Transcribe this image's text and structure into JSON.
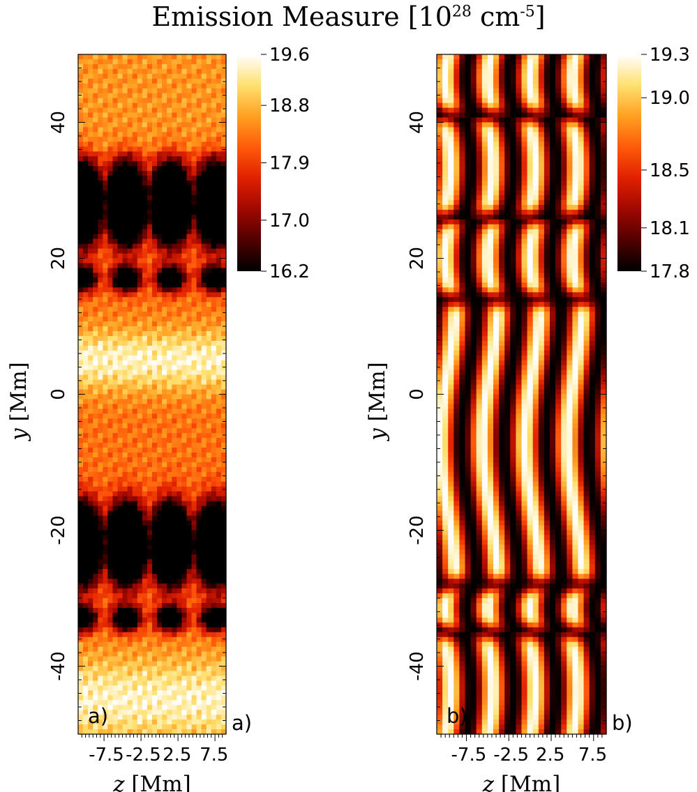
{
  "title": {
    "prefix": "Emission Measure [10",
    "exponent": "28",
    "unit": " cm",
    "unit_exponent": "-5",
    "suffix": "]"
  },
  "chart_data": [
    {
      "type": "heatmap",
      "panel": "a",
      "panel_label": "a)",
      "outer_label": "a)",
      "xlabel_var": "z",
      "xlabel_unit": " [Mm]",
      "ylabel_var": "y",
      "ylabel_unit": " [Mm]",
      "xlim": [
        -11,
        9
      ],
      "ylim": [
        -50,
        50
      ],
      "xtick_labels": [
        "-7.5",
        "-2.5",
        "2.5",
        "7.5"
      ],
      "xtick_values": [
        -7.5,
        -2.5,
        2.5,
        7.5
      ],
      "ytick_labels": [
        "40",
        "20",
        "0",
        "-20",
        "-40"
      ],
      "ytick_values": [
        40,
        20,
        0,
        -20,
        -40
      ],
      "colorbar": {
        "ticks": [
          "19.6",
          "18.8",
          "17.9",
          "17.0",
          "16.2"
        ],
        "tick_values": [
          19.6,
          18.8,
          17.9,
          17.0,
          16.2
        ],
        "min": 16.2,
        "max": 19.6
      },
      "pattern": {
        "background_level": 18.3,
        "bright_bands_y_centers": [
          5,
          -45
        ],
        "bright_band_level": 19.5,
        "dark_blobs_y_centers": [
          28,
          -22
        ],
        "dark_blob_level": 16.3,
        "dark_blob_z_centers": [
          -10.5,
          -4.5,
          1.5,
          7.5
        ],
        "weak_dark_y_centers": [
          17,
          -33
        ]
      }
    },
    {
      "type": "heatmap",
      "panel": "b",
      "panel_label": "b)",
      "outer_label": "b)",
      "xlabel_var": "z",
      "xlabel_unit": " [Mm]",
      "ylabel_var": "y",
      "ylabel_unit": " [Mm]",
      "xlim": [
        -11,
        9
      ],
      "ylim": [
        -50,
        50
      ],
      "xtick_labels": [
        "-7.5",
        "-2.5",
        "2.5",
        "7.5"
      ],
      "xtick_values": [
        -7.5,
        -2.5,
        2.5,
        7.5
      ],
      "ytick_labels": [
        "40",
        "20",
        "0",
        "-20",
        "-40"
      ],
      "ytick_values": [
        40,
        20,
        0,
        -20,
        -40
      ],
      "colorbar": {
        "ticks": [
          "19.3",
          "19.0",
          "18.5",
          "18.1",
          "17.8"
        ],
        "tick_values": [
          19.3,
          19.0,
          18.5,
          18.1,
          17.8
        ],
        "min": 17.8,
        "max": 19.3
      },
      "pattern": {
        "stripe_count": 4,
        "stripe_period_z": 5,
        "stripe_min_level": 17.8,
        "stripe_max_level": 19.3,
        "horizontal_breaks_y": [
          41,
          26,
          14,
          -28,
          -35
        ]
      }
    }
  ],
  "colors": {
    "cmap": [
      "#000000",
      "#500000",
      "#a00800",
      "#e02000",
      "#ff5a0a",
      "#ffa020",
      "#ffe070",
      "#ffffff"
    ],
    "axis": "#000000"
  }
}
